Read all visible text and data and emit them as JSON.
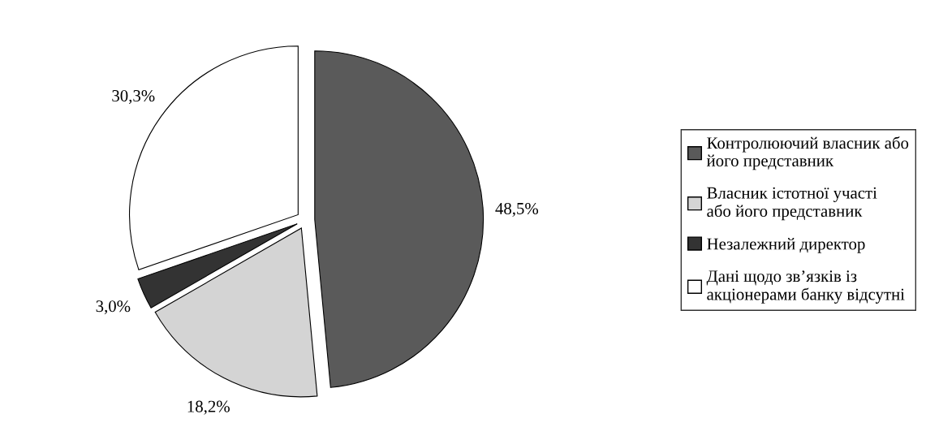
{
  "chart_data": {
    "type": "pie",
    "categories": [
      "Контролюючий власник або його представник",
      "Власник істотної участі або його представник",
      "Незалежний директор",
      "Дані щодо зв’язків із акціонерами банку відсутні"
    ],
    "values": [
      48.5,
      18.2,
      3.0,
      30.3
    ],
    "value_labels": [
      "48,5%",
      "18,2%",
      "3,0%",
      "30,3%"
    ],
    "colors": [
      "#5a5a5a",
      "#d4d4d4",
      "#333333",
      "#ffffff"
    ],
    "legend": "right"
  }
}
